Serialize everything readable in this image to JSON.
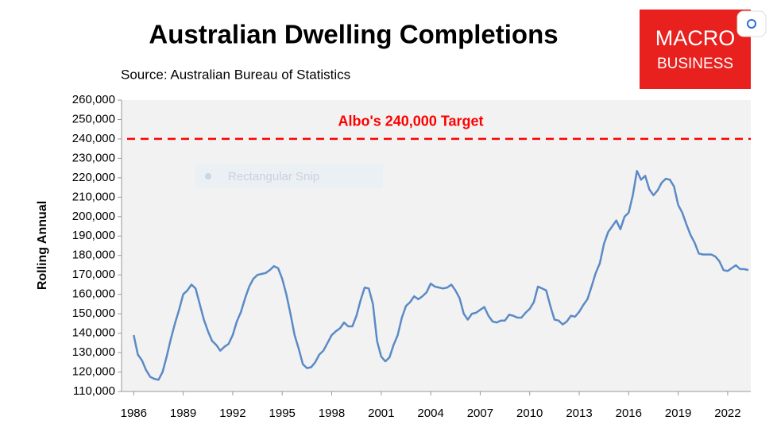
{
  "chart_data": {
    "type": "line",
    "title": "Australian Dwelling Completions",
    "subtitle": "Source: Australian Bureau of Statistics",
    "y_label": "Rolling Annual",
    "logo": {
      "lines": [
        "MACRO",
        "BUSINESS"
      ],
      "color": "#e8201e"
    },
    "overlay_text": "Rectangular Snip",
    "target": {
      "label": "Albo's 240,000 Target",
      "value": 240000,
      "color": "#ff0000"
    },
    "x": [
      1986,
      1986.25,
      1986.5,
      1986.75,
      1987,
      1987.25,
      1987.5,
      1987.75,
      1988,
      1988.25,
      1988.5,
      1988.75,
      1989,
      1989.25,
      1989.5,
      1989.75,
      1990,
      1990.25,
      1990.5,
      1990.75,
      1991,
      1991.25,
      1991.5,
      1991.75,
      1992,
      1992.25,
      1992.5,
      1992.75,
      1993,
      1993.25,
      1993.5,
      1993.75,
      1994,
      1994.25,
      1994.5,
      1994.75,
      1995,
      1995.25,
      1995.5,
      1995.75,
      1996,
      1996.25,
      1996.5,
      1996.75,
      1997,
      1997.25,
      1997.5,
      1997.75,
      1998,
      1998.25,
      1998.5,
      1998.75,
      1999,
      1999.25,
      1999.5,
      1999.75,
      2000,
      2000.25,
      2000.5,
      2000.75,
      2001,
      2001.25,
      2001.5,
      2001.75,
      2002,
      2002.25,
      2002.5,
      2002.75,
      2003,
      2003.25,
      2003.5,
      2003.75,
      2004,
      2004.25,
      2004.5,
      2004.75,
      2005,
      2005.25,
      2005.5,
      2005.75,
      2006,
      2006.25,
      2006.5,
      2006.75,
      2007,
      2007.25,
      2007.5,
      2007.75,
      2008,
      2008.25,
      2008.5,
      2008.75,
      2009,
      2009.25,
      2009.5,
      2009.75,
      2010,
      2010.25,
      2010.5,
      2010.75,
      2011,
      2011.25,
      2011.5,
      2011.75,
      2012,
      2012.25,
      2012.5,
      2012.75,
      2013,
      2013.25,
      2013.5,
      2013.75,
      2014,
      2014.25,
      2014.5,
      2014.75,
      2015,
      2015.25,
      2015.5,
      2015.75,
      2016,
      2016.25,
      2016.5,
      2016.75,
      2017,
      2017.25,
      2017.5,
      2017.75,
      2018,
      2018.25,
      2018.5,
      2018.75,
      2019,
      2019.25,
      2019.5,
      2019.75,
      2020,
      2020.25,
      2020.5,
      2020.75,
      2021,
      2021.25,
      2021.5,
      2021.75,
      2022,
      2022.25,
      2022.5,
      2022.75,
      2023,
      2023.25
    ],
    "series": [
      {
        "name": "Rolling Annual",
        "color": "#5b8ac6",
        "values": [
          139000,
          129000,
          126000,
          121000,
          117500,
          116500,
          116000,
          120000,
          128000,
          137000,
          145000,
          152000,
          160000,
          162000,
          165000,
          163000,
          155000,
          147000,
          141000,
          136000,
          134000,
          131000,
          133000,
          134500,
          139000,
          146000,
          151000,
          158000,
          164000,
          168000,
          170000,
          170500,
          171000,
          172500,
          174500,
          173500,
          168000,
          160000,
          150000,
          139000,
          132000,
          124000,
          122000,
          122500,
          125000,
          129000,
          131000,
          135000,
          139000,
          141000,
          142500,
          145500,
          143500,
          143500,
          149000,
          157000,
          163500,
          163000,
          155000,
          136000,
          128000,
          125500,
          127500,
          134000,
          139000,
          148000,
          154000,
          156000,
          159000,
          157500,
          159000,
          161000,
          165500,
          164000,
          163500,
          163000,
          163500,
          165000,
          162000,
          158000,
          150000,
          147000,
          150000,
          150500,
          152000,
          153500,
          149000,
          146000,
          145500,
          146500,
          146500,
          149500,
          149000,
          148000,
          148000,
          150500,
          152500,
          156000,
          164000,
          163000,
          162000,
          154000,
          147000,
          146500,
          144500,
          146000,
          149000,
          148500,
          151000,
          154500,
          157500,
          164000,
          171000,
          176000,
          186000,
          192000,
          195000,
          198000,
          193500,
          200000,
          202000,
          211000,
          223500,
          219000,
          221000,
          214000,
          211000,
          213500,
          217500,
          219500,
          219000,
          215500,
          206000,
          202000,
          196000,
          190500,
          186500,
          181000,
          180500,
          180500,
          180500,
          179500,
          177000,
          172500,
          172000,
          173500,
          175000,
          173000,
          173000,
          172500
        ]
      }
    ],
    "xlim": [
      1985.6,
      2023.4
    ],
    "xticks": [
      1986,
      1989,
      1992,
      1995,
      1998,
      2001,
      2004,
      2007,
      2010,
      2013,
      2016,
      2019,
      2022
    ],
    "ylim": [
      110000,
      260000
    ],
    "yticks": [
      {
        "value": 110000,
        "label": "110,000"
      },
      {
        "value": 120000,
        "label": "120,000"
      },
      {
        "value": 130000,
        "label": "130,000"
      },
      {
        "value": 140000,
        "label": "140,000"
      },
      {
        "value": 150000,
        "label": "150,000"
      },
      {
        "value": 160000,
        "label": "160,000"
      },
      {
        "value": 170000,
        "label": "170,000"
      },
      {
        "value": 180000,
        "label": "180,000"
      },
      {
        "value": 190000,
        "label": "190,000"
      },
      {
        "value": 200000,
        "label": "200,000"
      },
      {
        "value": 210000,
        "label": "210,000"
      },
      {
        "value": 220000,
        "label": "220,000"
      },
      {
        "value": 230000,
        "label": "230,000"
      },
      {
        "value": 240000,
        "label": "240,000"
      },
      {
        "value": 250000,
        "label": "250,000"
      },
      {
        "value": 260000,
        "label": "260,000"
      }
    ],
    "grid": false
  }
}
